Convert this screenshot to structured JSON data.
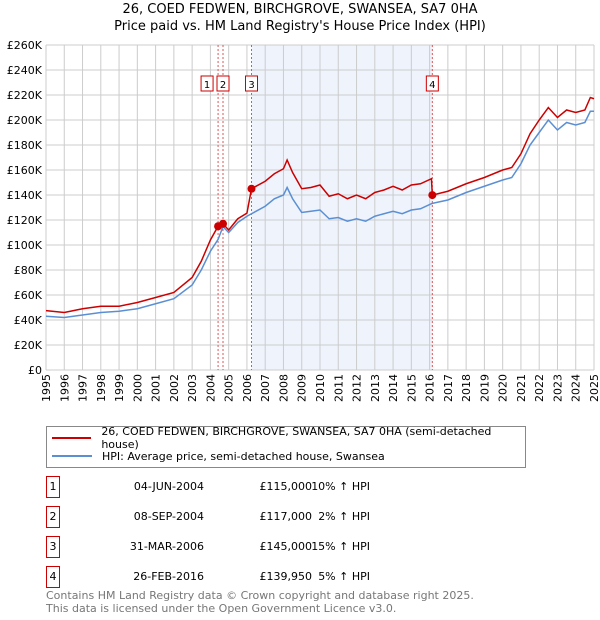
{
  "title": "26, COED FEDWEN, BIRCHGROVE, SWANSEA, SA7 0HA",
  "subtitle": "Price paid vs. HM Land Registry's House Price Index (HPI)",
  "chart_data": {
    "type": "line",
    "title": "26, COED FEDWEN, BIRCHGROVE, SWANSEA, SA7 0HA",
    "subtitle": "Price paid vs. HM Land Registry's House Price Index (HPI)",
    "xlim": [
      1995,
      2025
    ],
    "ylim": [
      0,
      260000
    ],
    "x_ticks": [
      "1995",
      "1996",
      "1997",
      "1998",
      "1999",
      "2000",
      "2001",
      "2002",
      "2003",
      "2004",
      "2005",
      "2006",
      "2007",
      "2008",
      "2009",
      "2010",
      "2011",
      "2012",
      "2013",
      "2014",
      "2015",
      "2016",
      "2017",
      "2018",
      "2019",
      "2020",
      "2021",
      "2022",
      "2023",
      "2024",
      "2025"
    ],
    "y_ticks": [
      "£0",
      "£20K",
      "£40K",
      "£60K",
      "£80K",
      "£100K",
      "£120K",
      "£140K",
      "£160K",
      "£180K",
      "£200K",
      "£220K",
      "£240K",
      "£260K"
    ],
    "grid": true,
    "x": [
      1995,
      1996,
      1997,
      1998,
      1999,
      2000,
      2001,
      2002,
      2003,
      2003.5,
      2004,
      2004.42,
      2004.69,
      2005,
      2005.5,
      2006,
      2006.25,
      2007,
      2007.5,
      2008,
      2008.2,
      2008.5,
      2009,
      2009.5,
      2010,
      2010.5,
      2011,
      2011.5,
      2012,
      2012.5,
      2013,
      2013.5,
      2014,
      2014.5,
      2015,
      2015.5,
      2016.1,
      2016.15,
      2017,
      2018,
      2019,
      2020,
      2020.5,
      2021,
      2021.5,
      2022,
      2022.5,
      2023,
      2023.5,
      2024,
      2024.5,
      2024.8,
      2025
    ],
    "series": [
      {
        "name": "26, COED FEDWEN, BIRCHGROVE, SWANSEA, SA7 0HA (semi-detached house)",
        "color": "#cc0000",
        "values": [
          47500,
          46000,
          49000,
          51000,
          51000,
          54000,
          58000,
          62000,
          74000,
          87000,
          104000,
          115000,
          117000,
          112000,
          121000,
          125500,
          145000,
          151000,
          157000,
          161000,
          168000,
          158000,
          145000,
          146000,
          148000,
          139000,
          141000,
          137000,
          140000,
          137000,
          142000,
          144000,
          147000,
          144000,
          148000,
          149000,
          153000,
          139950,
          143000,
          149000,
          154000,
          160000,
          162000,
          173000,
          189000,
          200000,
          210000,
          202000,
          208000,
          206000,
          208000,
          218000,
          217000
        ]
      },
      {
        "name": "HPI: Average price, semi-detached house, Swansea",
        "color": "#5b8fd4",
        "values": [
          43000,
          42000,
          44000,
          46000,
          47000,
          49000,
          53000,
          57000,
          68000,
          80000,
          95000,
          104500,
          114700,
          110000,
          118000,
          123000,
          125000,
          131000,
          137000,
          140000,
          146000,
          137000,
          126000,
          127000,
          128000,
          121000,
          122000,
          119000,
          121000,
          119000,
          123000,
          125000,
          127000,
          125000,
          128000,
          129000,
          133000,
          133300,
          136000,
          142000,
          147000,
          152000,
          154000,
          165000,
          180000,
          190000,
          200000,
          192000,
          198000,
          196000,
          198000,
          207000,
          207000
        ]
      }
    ],
    "sales": [
      {
        "n": "1",
        "x": 2004.42,
        "y": 115000
      },
      {
        "n": "2",
        "x": 2004.69,
        "y": 117000
      },
      {
        "n": "3",
        "x": 2006.25,
        "y": 145000
      },
      {
        "n": "4",
        "x": 2016.15,
        "y": 139950
      }
    ],
    "shaded_range": [
      2006.25,
      2016.15
    ],
    "legend_position": "bottom"
  },
  "legend": [
    {
      "label": "26, COED FEDWEN, BIRCHGROVE, SWANSEA, SA7 0HA (semi-detached house)",
      "color": "#cc0000"
    },
    {
      "label": "HPI: Average price, semi-detached house, Swansea",
      "color": "#5b8fd4"
    }
  ],
  "table": [
    {
      "n": "1",
      "date": "04-JUN-2004",
      "price": "£115,000",
      "hpi": "10% ↑ HPI"
    },
    {
      "n": "2",
      "date": "08-SEP-2004",
      "price": "£117,000",
      "hpi": "2% ↑ HPI"
    },
    {
      "n": "3",
      "date": "31-MAR-2006",
      "price": "£145,000",
      "hpi": "15% ↑ HPI"
    },
    {
      "n": "4",
      "date": "26-FEB-2016",
      "price": "£139,950",
      "hpi": "5% ↑ HPI"
    }
  ],
  "footer": [
    "Contains HM Land Registry data © Crown copyright and database right 2025.",
    "This data is licensed under the Open Government Licence v3.0."
  ]
}
